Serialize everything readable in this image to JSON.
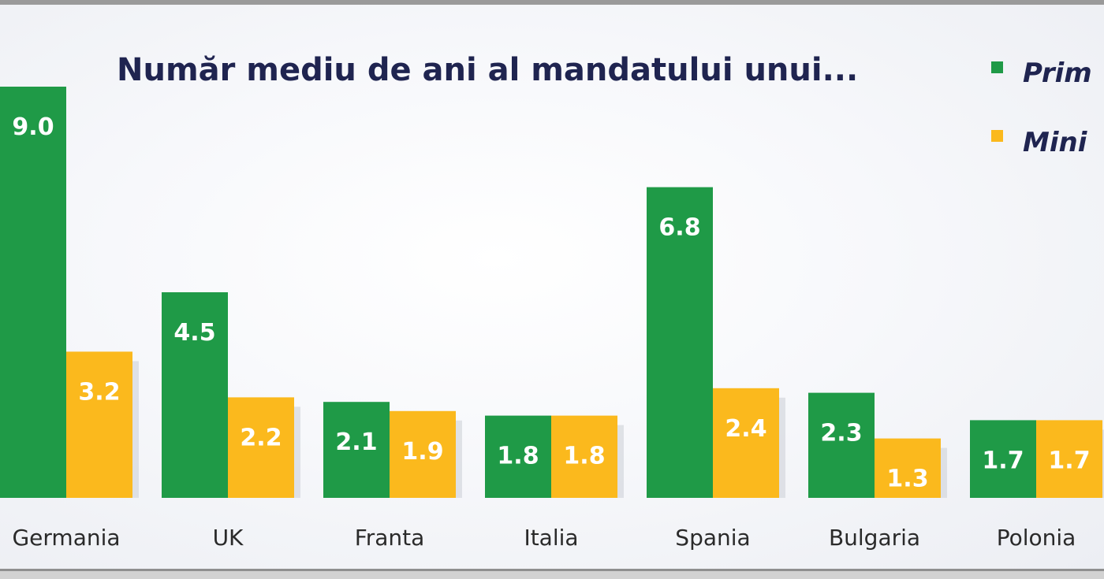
{
  "colors": {
    "primary_series": "#1f9a47",
    "secondary_series": "#fbb91d",
    "title": "#1f2450"
  },
  "chart_data": {
    "type": "bar",
    "title": "Număr mediu de ani al mandatului unui...",
    "xlabel": "",
    "ylabel": "",
    "ylim": [
      0,
      9.5
    ],
    "grid": false,
    "legend_position": "top-right",
    "categories": [
      "Germania",
      "UK",
      "Franta",
      "Italia",
      "Spania",
      "Bulgaria",
      "Polonia"
    ],
    "series": [
      {
        "name": "Prim",
        "color": "#1f9a47",
        "values": [
          9.0,
          4.5,
          2.1,
          1.8,
          6.8,
          2.3,
          1.7
        ],
        "labels": [
          "9.0",
          "4.5",
          "2.1",
          "1.8",
          "6.8",
          "2.3",
          "1.7"
        ]
      },
      {
        "name": "Mini",
        "color": "#fbb91d",
        "values": [
          3.2,
          2.2,
          1.9,
          1.8,
          2.4,
          1.3,
          1.7
        ],
        "labels": [
          "3.2",
          "2.2",
          "1.9",
          "1.8",
          "2.4",
          "1.3",
          "1.7"
        ]
      }
    ]
  }
}
